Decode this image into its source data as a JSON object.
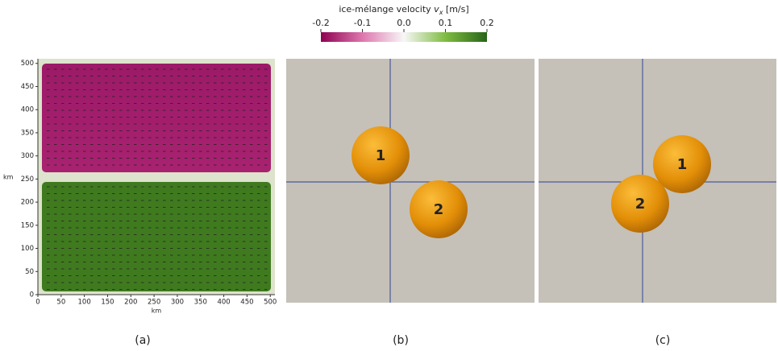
{
  "colorbar": {
    "title": "ice-mélange velocity",
    "var": "v",
    "sub": "x",
    "unit": "[m/s]",
    "lim": [
      -0.2,
      0.2
    ],
    "ticks": [
      -0.2,
      -0.1,
      {
        "value": 0.0,
        "label": "0.0"
      },
      0.1,
      0.2
    ],
    "colors": [
      "#8e0152",
      "#de77ae",
      "#f7f7f7",
      "#7fbc41",
      "#276419"
    ]
  },
  "chart_data": {
    "type": "field",
    "xlabel": "km",
    "ylabel": "km",
    "xlim": [
      0,
      510
    ],
    "ylim": [
      0,
      510
    ],
    "xticks": [
      0,
      50,
      100,
      150,
      200,
      250,
      300,
      350,
      400,
      450,
      500
    ],
    "yticks": [
      0,
      50,
      100,
      150,
      200,
      250,
      300,
      350,
      400,
      450,
      500
    ]
  },
  "panels": [
    {
      "caption": "(a)"
    },
    {
      "caption": "(b)",
      "spheres": [
        {
          "label": "1"
        },
        {
          "label": "2"
        }
      ]
    },
    {
      "caption": "(c)",
      "spheres": [
        {
          "label": "1"
        },
        {
          "label": "2"
        }
      ]
    }
  ]
}
